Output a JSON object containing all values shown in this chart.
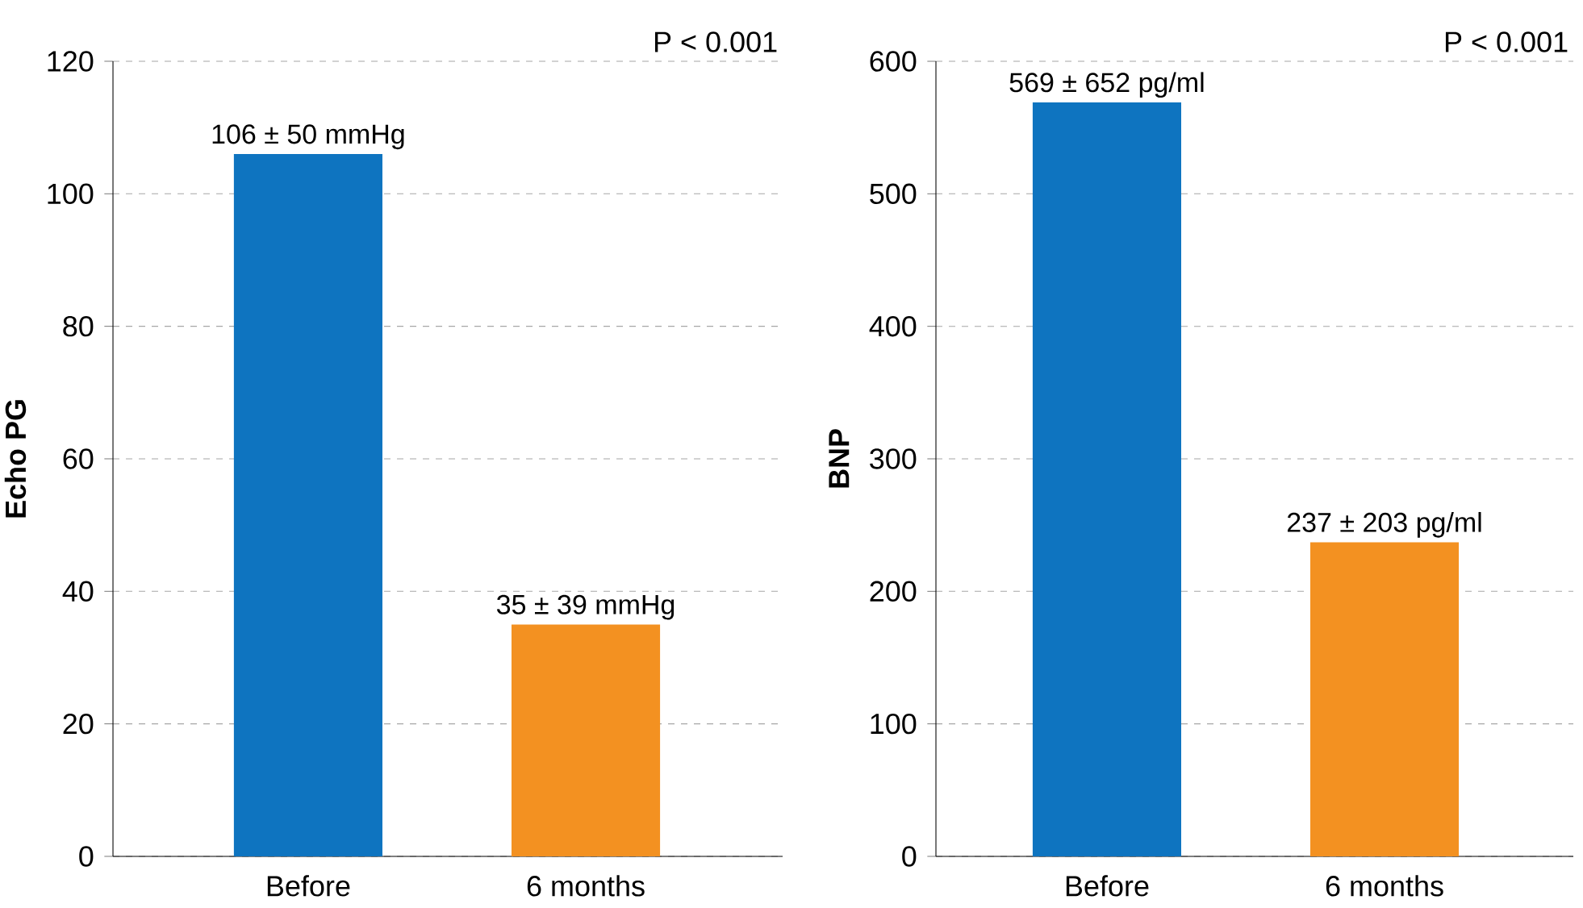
{
  "chart_data": [
    {
      "type": "bar",
      "ylabel": "Echo PG",
      "categories": [
        "Before",
        "6 months"
      ],
      "values": [
        106,
        35
      ],
      "colors": [
        "#0e74c0",
        "#f39121"
      ],
      "value_labels": [
        "106 ± 50 mmHg",
        "35 ± 39 mmHg"
      ],
      "ylim": [
        0,
        120
      ],
      "yticks": [
        0,
        20,
        40,
        60,
        80,
        100,
        120
      ],
      "grid": "y",
      "annotations": [
        "P < 0.001"
      ]
    },
    {
      "type": "bar",
      "ylabel": "BNP",
      "categories": [
        "Before",
        "6 months"
      ],
      "values": [
        569,
        237
      ],
      "colors": [
        "#0e74c0",
        "#f39121"
      ],
      "value_labels": [
        "569 ± 652 pg/ml",
        "237 ± 203 pg/ml"
      ],
      "ylim": [
        0,
        600
      ],
      "yticks": [
        0,
        100,
        200,
        300,
        400,
        500,
        600
      ],
      "grid": "y",
      "annotations": [
        "P < 0.001"
      ]
    }
  ]
}
